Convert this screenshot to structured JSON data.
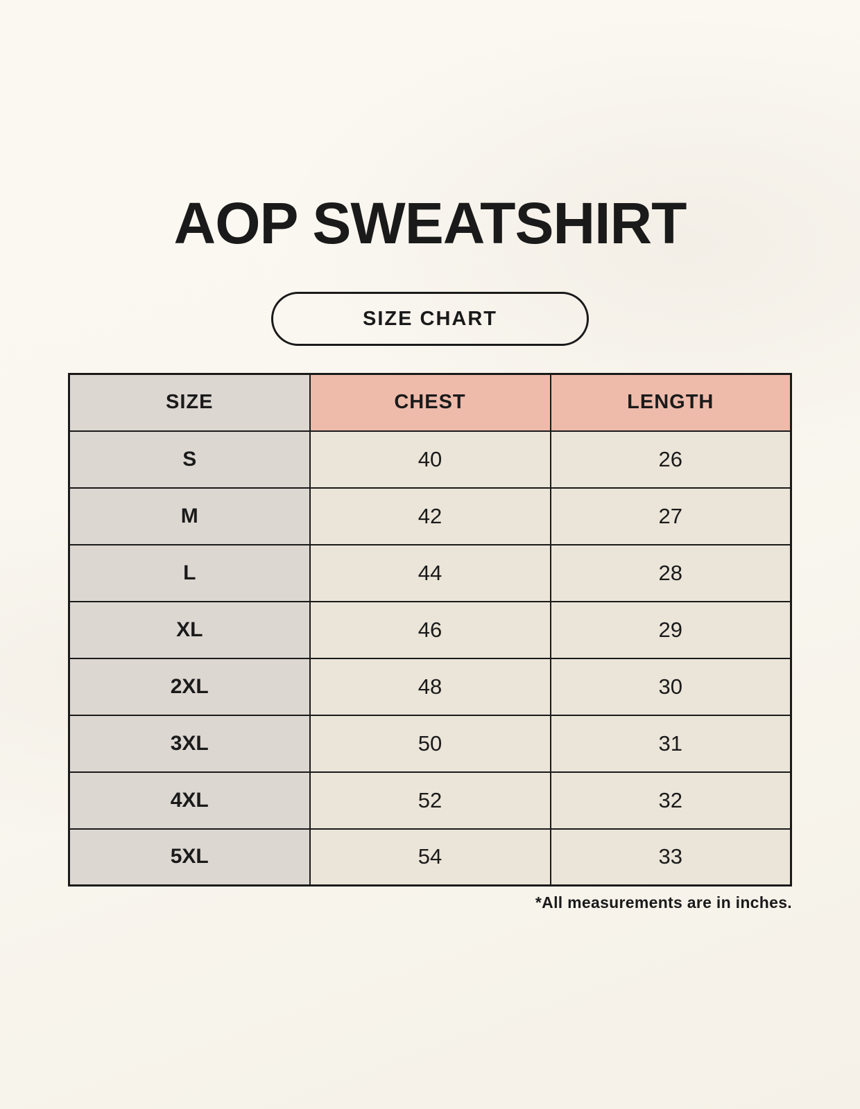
{
  "page": {
    "title": "AOP SWEATSHIRT",
    "badge_label": "SIZE CHART",
    "footnote": "*All measurements are in inches."
  },
  "colors": {
    "background": "#FAF7F0",
    "size_col_bg": "#DDD7D1",
    "accent_header_bg": "#EEBBAB",
    "value_cell_bg": "#EBE5D9",
    "border": "#1A1A1A",
    "text": "#1A1A1A"
  },
  "chart_data": {
    "type": "table",
    "title": "AOP SWEATSHIRT",
    "units": "inches",
    "columns": [
      "SIZE",
      "CHEST",
      "LENGTH"
    ],
    "rows": [
      {
        "size": "S",
        "chest": "40",
        "length": "26"
      },
      {
        "size": "M",
        "chest": "42",
        "length": "27"
      },
      {
        "size": "L",
        "chest": "44",
        "length": "28"
      },
      {
        "size": "XL",
        "chest": "46",
        "length": "29"
      },
      {
        "size": "2XL",
        "chest": "48",
        "length": "30"
      },
      {
        "size": "3XL",
        "chest": "50",
        "length": "31"
      },
      {
        "size": "4XL",
        "chest": "52",
        "length": "32"
      },
      {
        "size": "5XL",
        "chest": "54",
        "length": "33"
      }
    ]
  }
}
